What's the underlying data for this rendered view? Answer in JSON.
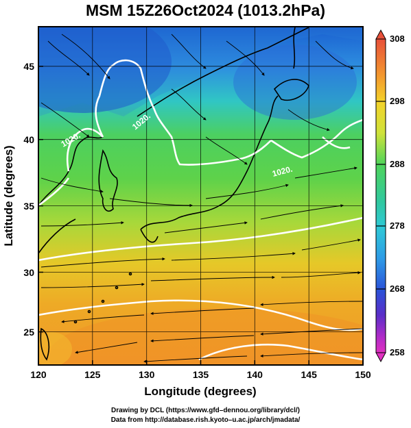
{
  "title": "MSM 15Z26Oct2024 (1013.2hPa)",
  "x_axis": {
    "label": "Longitude (degrees)",
    "ticks": [
      "120",
      "125",
      "130",
      "135",
      "140",
      "145",
      "150"
    ],
    "range": [
      120,
      150
    ]
  },
  "y_axis": {
    "label": "Latitude  (degrees)",
    "ticks": [
      "25",
      "30",
      "35",
      "40",
      "45"
    ],
    "range": [
      22.5,
      48
    ]
  },
  "colorbar": {
    "ticks": [
      "308",
      "298",
      "288",
      "278",
      "268",
      "258"
    ],
    "range": [
      258,
      308
    ]
  },
  "contour_labels": [
    "1020.",
    "1020.",
    "1020.",
    "1020."
  ],
  "footer": {
    "line1": "Drawing by DCL (https://www.gfd–dennou.org/library/dcl/)",
    "line2": "Data from http://database.rish.kyoto–u.ac.jp/arch/jmadata/"
  }
}
